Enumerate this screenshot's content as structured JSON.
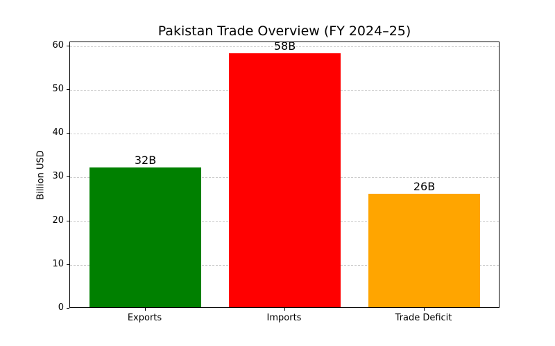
{
  "chart_data": {
    "type": "bar",
    "title": "Pakistan Trade Overview (FY 2024–25)",
    "xlabel": "",
    "ylabel": "Billion USD",
    "categories": [
      "Exports",
      "Imports",
      "Trade Deficit"
    ],
    "values": [
      32,
      58,
      26
    ],
    "data_labels": [
      "32B",
      "58B",
      "26B"
    ],
    "colors": [
      "#008000",
      "#ff0000",
      "#ffa500"
    ],
    "ylim": [
      0,
      60.9
    ],
    "yticks": [
      0,
      10,
      20,
      30,
      40,
      50,
      60
    ],
    "grid": {
      "axis": "y",
      "style": "dashed"
    },
    "legend": null
  }
}
